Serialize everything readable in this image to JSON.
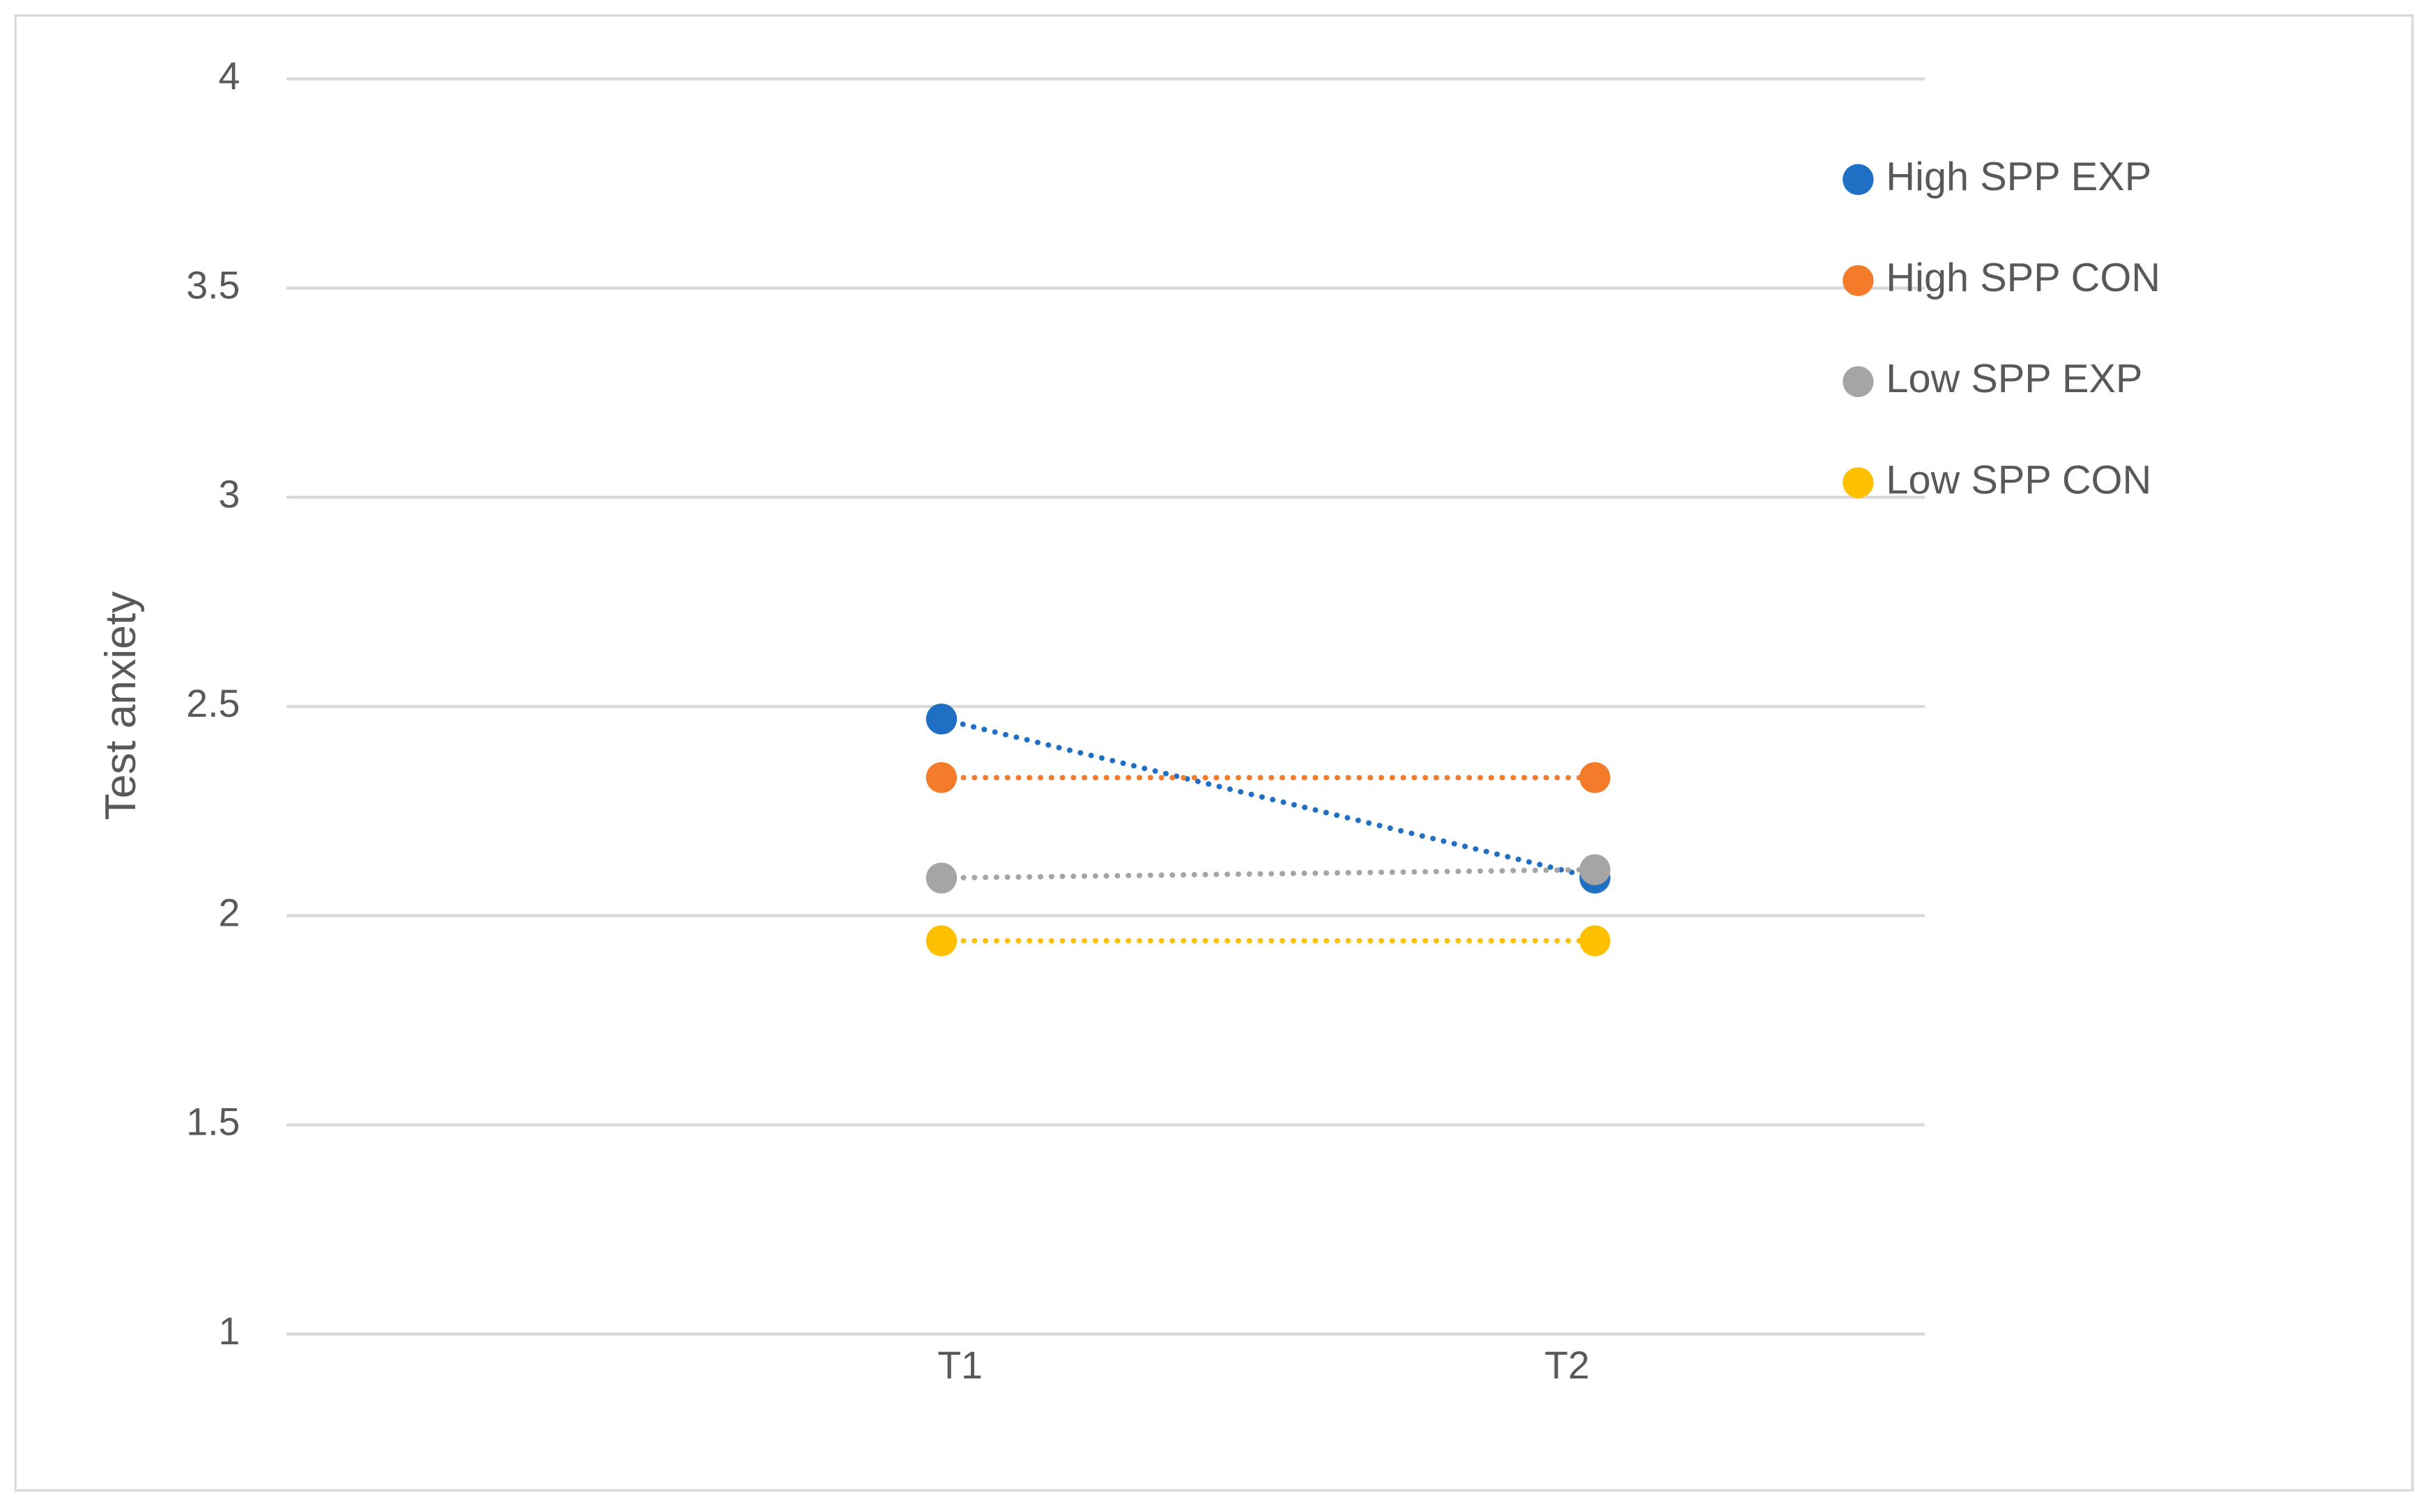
{
  "chart_data": {
    "type": "line",
    "y_label": "Test anxiety",
    "categories": [
      "T1",
      "T2"
    ],
    "series": [
      {
        "name": "High SPP EXP",
        "color": "#1f6fc5",
        "values": [
          2.47,
          2.09
        ]
      },
      {
        "name": "High SPP CON",
        "color": "#f47b2a",
        "values": [
          2.33,
          2.33
        ]
      },
      {
        "name": "Low SPP EXP",
        "color": "#a5a5a5",
        "values": [
          2.09,
          2.11
        ]
      },
      {
        "name": "Low SPP CON",
        "color": "#ffc000",
        "values": [
          1.94,
          1.94
        ]
      }
    ],
    "ylim": [
      1,
      4
    ],
    "yticks": [
      1,
      1.5,
      2,
      2.5,
      3,
      3.5,
      4
    ],
    "grid": true,
    "line_style": "dotted",
    "legend": "right"
  }
}
